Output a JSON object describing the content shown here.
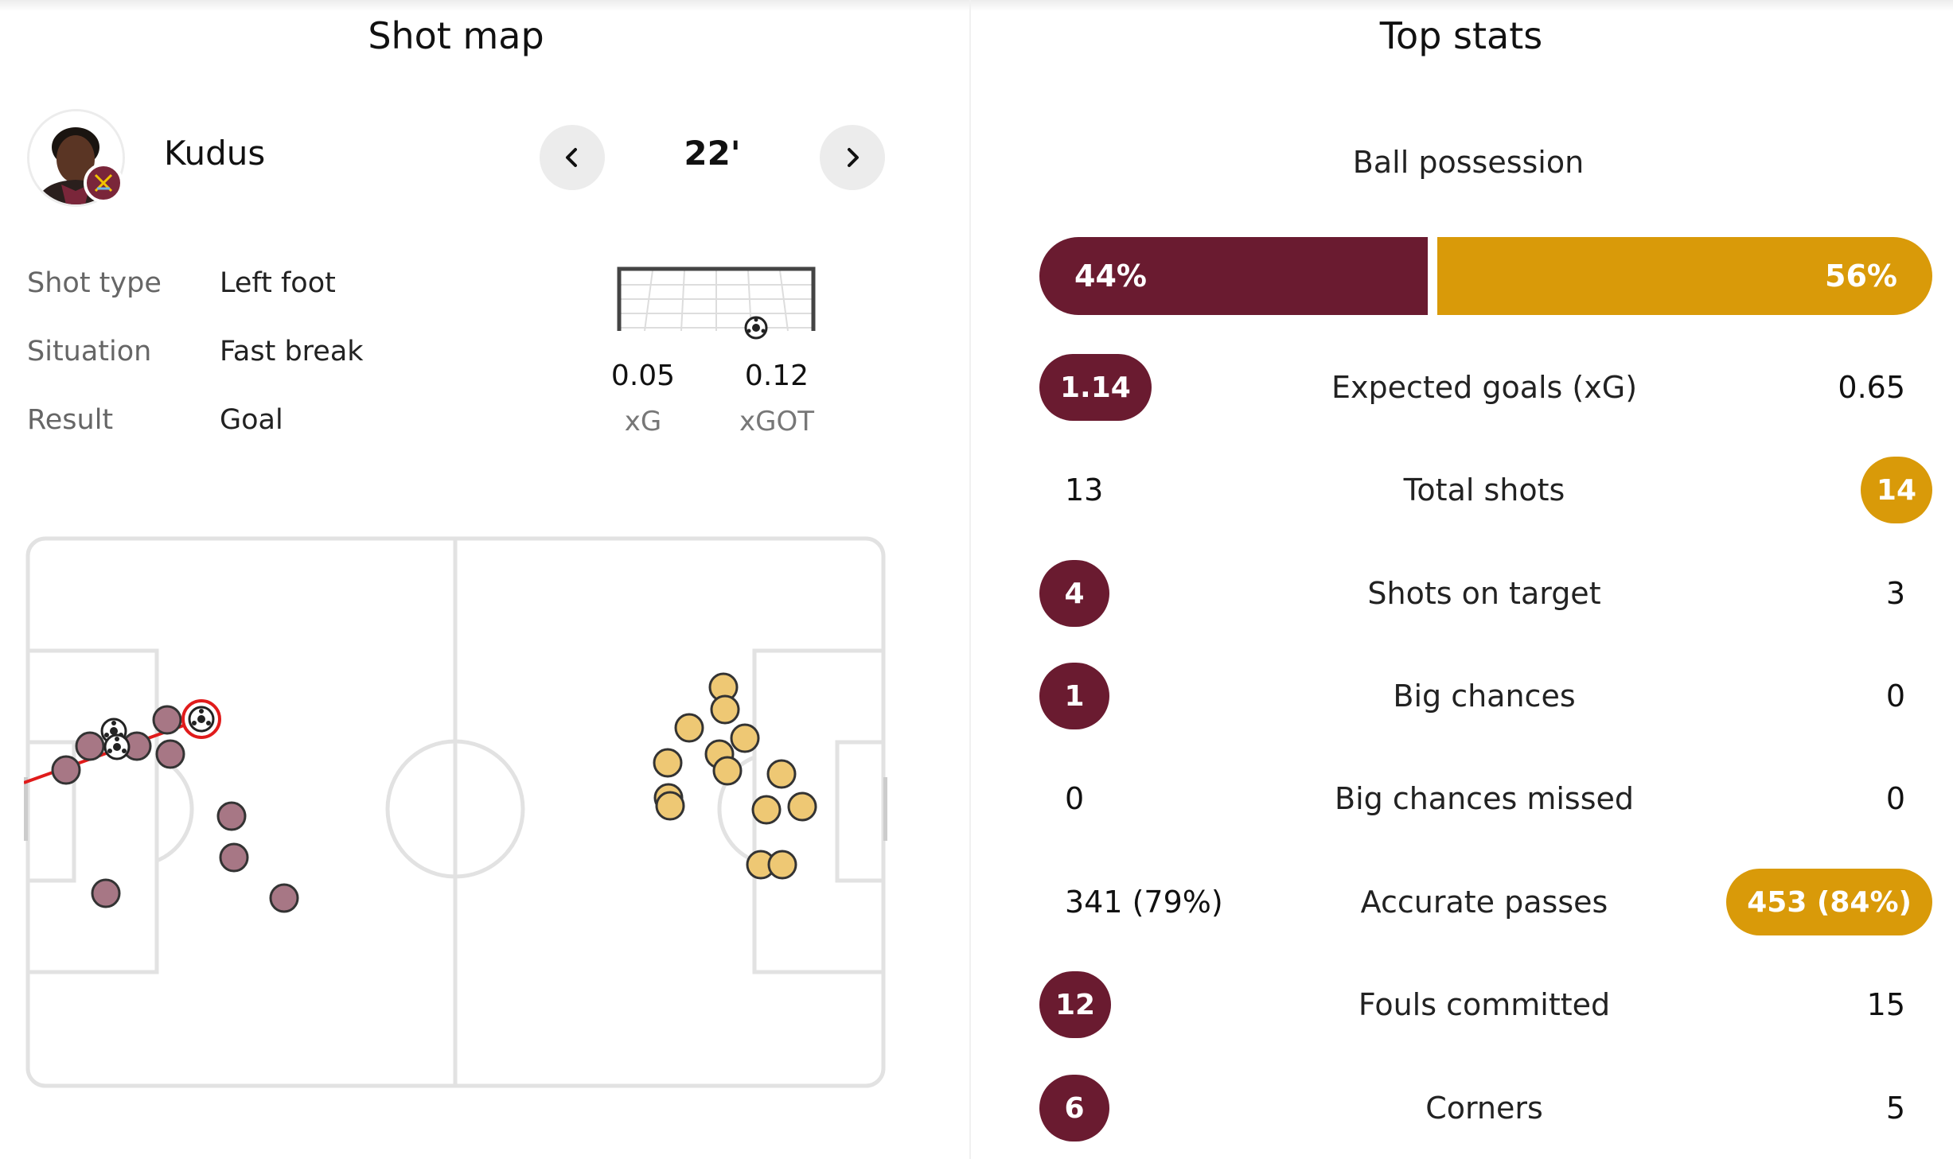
{
  "shot_map": {
    "title": "Shot map",
    "player": {
      "name": "Kudus"
    },
    "minute": "22'",
    "info": [
      {
        "label": "Shot type",
        "value": "Left foot"
      },
      {
        "label": "Situation",
        "value": "Fast break"
      },
      {
        "label": "Result",
        "value": "Goal"
      }
    ],
    "xg": {
      "value": "0.05",
      "label": "xG"
    },
    "xgot": {
      "value": "0.12",
      "label": "xGOT"
    },
    "colors": {
      "home": "#a77785",
      "away": "#eec874",
      "selected": "#e01b1b"
    }
  },
  "top_stats": {
    "title": "Top stats",
    "possession": {
      "label": "Ball possession",
      "home": "44%",
      "away": "56%",
      "home_share": 44
    },
    "rows": [
      {
        "label": "Expected goals (xG)",
        "home": "1.14",
        "away": "0.65",
        "highlight": "home"
      },
      {
        "label": "Total shots",
        "home": "13",
        "away": "14",
        "highlight": "away"
      },
      {
        "label": "Shots on target",
        "home": "4",
        "away": "3",
        "highlight": "home"
      },
      {
        "label": "Big chances",
        "home": "1",
        "away": "0",
        "highlight": "home"
      },
      {
        "label": "Big chances missed",
        "home": "0",
        "away": "0",
        "highlight": "none"
      },
      {
        "label": "Accurate passes",
        "home": "341 (79%)",
        "away": "453 (84%)",
        "highlight": "away"
      },
      {
        "label": "Fouls committed",
        "home": "12",
        "away": "15",
        "highlight": "home"
      },
      {
        "label": "Corners",
        "home": "6",
        "away": "5",
        "highlight": "home"
      }
    ],
    "colors": {
      "home": "#6a1b30",
      "away": "#d99a09"
    }
  }
}
